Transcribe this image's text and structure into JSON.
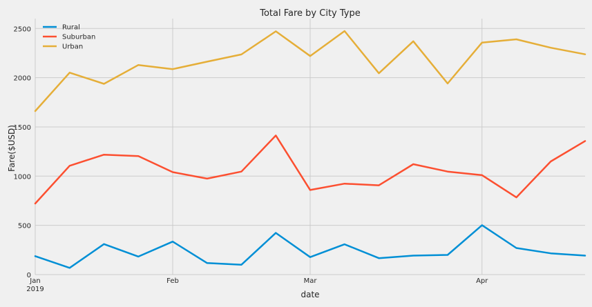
{
  "chart_data": {
    "type": "line",
    "title": "Total Fare by City Type",
    "xlabel": "date",
    "ylabel": "Fare($USD)",
    "ylim": [
      0,
      2600
    ],
    "xlim": [
      0,
      16
    ],
    "grid": true,
    "legend_position": "top-left",
    "x_ticks": [
      {
        "pos": 0,
        "label": "Jan",
        "sublabel": "2019"
      },
      {
        "pos": 4,
        "label": "Feb",
        "sublabel": ""
      },
      {
        "pos": 8,
        "label": "Mar",
        "sublabel": ""
      },
      {
        "pos": 13,
        "label": "Apr",
        "sublabel": ""
      }
    ],
    "y_ticks": [
      0,
      500,
      1000,
      1500,
      2000,
      2500
    ],
    "x": [
      "2019-01-06",
      "2019-01-13",
      "2019-01-20",
      "2019-01-27",
      "2019-02-03",
      "2019-02-10",
      "2019-02-17",
      "2019-02-24",
      "2019-03-03",
      "2019-03-10",
      "2019-03-17",
      "2019-03-24",
      "2019-03-31",
      "2019-04-07",
      "2019-04-14",
      "2019-04-21",
      "2019-04-28"
    ],
    "series": [
      {
        "name": "Rural",
        "color": "#008fd5",
        "values": [
          187,
          68,
          310,
          183,
          335,
          117,
          100,
          423,
          177,
          308,
          167,
          193,
          200,
          502,
          270,
          216,
          193
        ]
      },
      {
        "name": "Suburban",
        "color": "#fc4f30",
        "values": [
          722,
          1105,
          1218,
          1204,
          1041,
          975,
          1046,
          1413,
          859,
          924,
          907,
          1121,
          1046,
          1010,
          784,
          1149,
          1357
        ]
      },
      {
        "name": "Urban",
        "color": "#e5ae38",
        "values": [
          1661,
          2051,
          1938,
          2129,
          2087,
          2163,
          2236,
          2471,
          2220,
          2474,
          2045,
          2370,
          1941,
          2357,
          2390,
          2304,
          2238
        ]
      }
    ]
  }
}
